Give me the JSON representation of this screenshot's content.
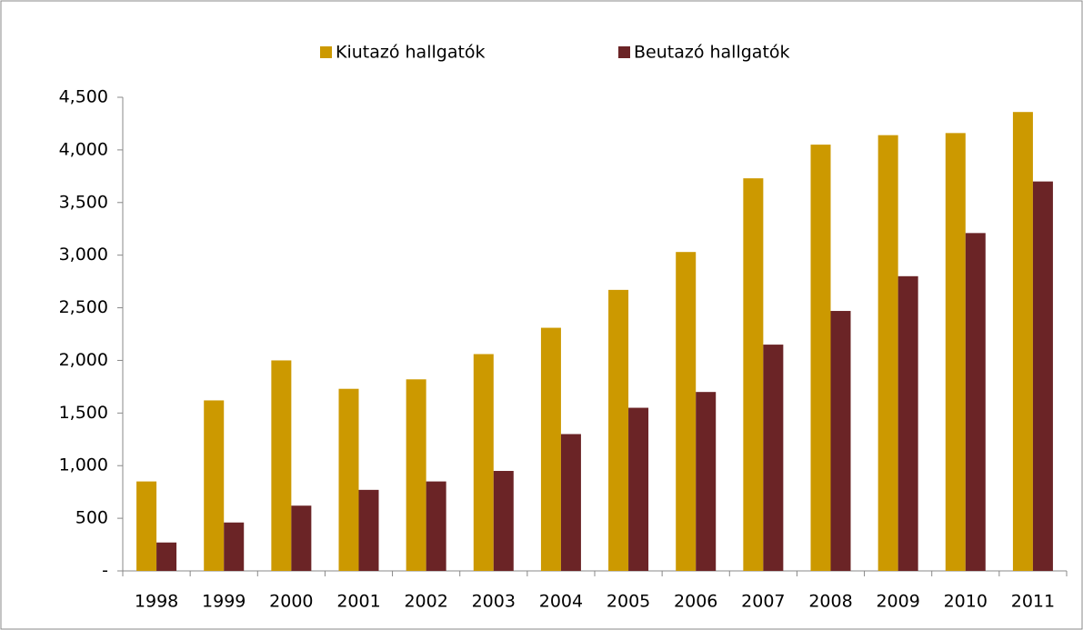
{
  "chart_data": {
    "type": "bar",
    "categories": [
      "1998",
      "1999",
      "2000",
      "2001",
      "2002",
      "2003",
      "2004",
      "2005",
      "2006",
      "2007",
      "2008",
      "2009",
      "2010",
      "2011"
    ],
    "series": [
      {
        "name": "Kiutazó hallgatók",
        "color": "#cc9900",
        "values": [
          850,
          1620,
          2000,
          1730,
          1820,
          2060,
          2310,
          2670,
          3030,
          3730,
          4050,
          4140,
          4160,
          4360
        ]
      },
      {
        "name": "Beutazó hallgatók",
        "color": "#6b2426",
        "values": [
          270,
          460,
          620,
          770,
          850,
          950,
          1300,
          1550,
          1700,
          2150,
          2470,
          2800,
          3210,
          3700
        ]
      }
    ],
    "ylim": [
      0,
      4500
    ],
    "yticks": [
      {
        "value": 0,
        "label": "-"
      },
      500,
      {
        "value": 1000,
        "label": "1,000"
      },
      {
        "value": 1500,
        "label": "1,500"
      },
      {
        "value": 2000,
        "label": "2,000"
      },
      {
        "value": 2500,
        "label": "2,500"
      },
      {
        "value": 3000,
        "label": "3,000"
      },
      {
        "value": 3500,
        "label": "3,500"
      },
      {
        "value": 4000,
        "label": "4,000"
      },
      {
        "value": 4500,
        "label": "4,500"
      }
    ],
    "grid": false,
    "legend": "top"
  }
}
